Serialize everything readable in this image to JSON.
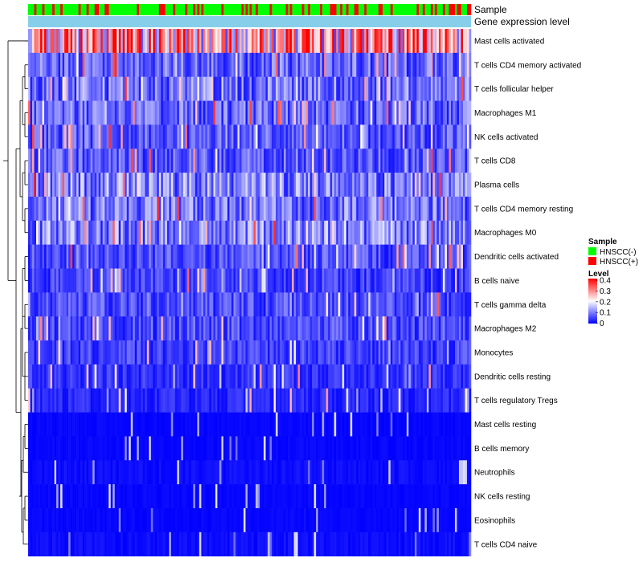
{
  "chart_data": {
    "type": "heatmap",
    "title": "",
    "n_samples": 220,
    "annotation_rows": [
      "Sample",
      "Gene expression level"
    ],
    "rows": [
      {
        "label": "Mast cells activated",
        "mean": 0.26
      },
      {
        "label": "T cells CD4 memory activated",
        "mean": 0.08
      },
      {
        "label": "T cells follicular helper",
        "mean": 0.09
      },
      {
        "label": "Macrophages M1",
        "mean": 0.08
      },
      {
        "label": "NK cells activated",
        "mean": 0.07
      },
      {
        "label": "T cells CD8",
        "mean": 0.07
      },
      {
        "label": "Plasma cells",
        "mean": 0.1
      },
      {
        "label": "T cells CD4 memory resting",
        "mean": 0.09
      },
      {
        "label": "Macrophages M0",
        "mean": 0.1
      },
      {
        "label": "Dendritic cells activated",
        "mean": 0.06
      },
      {
        "label": "B cells naive",
        "mean": 0.05
      },
      {
        "label": "T cells gamma delta",
        "mean": 0.06
      },
      {
        "label": "Macrophages M2",
        "mean": 0.06
      },
      {
        "label": "Monocytes",
        "mean": 0.05
      },
      {
        "label": "Dendritic cells resting",
        "mean": 0.04
      },
      {
        "label": "T cells regulatory  Tregs",
        "mean": 0.03
      },
      {
        "label": "Mast cells resting",
        "mean": 0.01
      },
      {
        "label": "B cells memory",
        "mean": 0.01
      },
      {
        "label": "Neutrophils",
        "mean": 0.02
      },
      {
        "label": "NK cells resting",
        "mean": 0.01
      },
      {
        "label": "Eosinophils",
        "mean": 0.01
      },
      {
        "label": "T cells CD4 naive",
        "mean": 0.02
      }
    ],
    "scale": {
      "min": 0,
      "max": 0.4,
      "colors": [
        "#0000ff",
        "#ffffff",
        "#ff0000"
      ],
      "ticks": [
        "0.4",
        "0.3",
        "0.2",
        "0.1",
        "0"
      ]
    },
    "legend": {
      "position": "right",
      "sample_title": "Sample",
      "sample_entries": [
        {
          "label": "HNSCC(-)",
          "color": "#00ff00"
        },
        {
          "label": "HNSCC(+)",
          "color": "#ff0000"
        }
      ],
      "level_title": "Level"
    },
    "gene_level_color": "#87ceeb"
  }
}
